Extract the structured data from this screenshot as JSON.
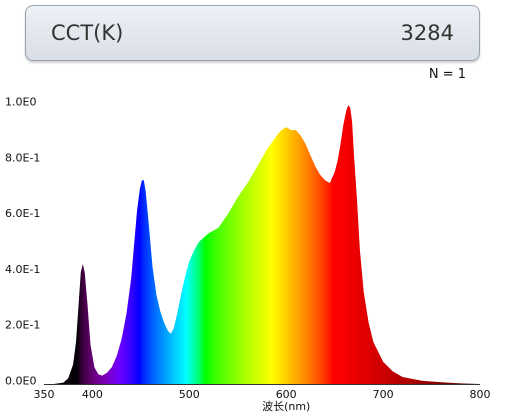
{
  "header": {
    "cct_label": "CCT(K)",
    "cct_value": "3284",
    "n_label": "N = 1"
  },
  "chart_data": {
    "type": "area",
    "title": "",
    "xlabel": "波长(nm)",
    "ylabel": "",
    "xlim": [
      350,
      800
    ],
    "ylim": [
      0,
      1.0
    ],
    "x_ticks": [
      "350",
      "400",
      "500",
      "600",
      "700",
      "800"
    ],
    "y_ticks": [
      "0.0E0",
      "2.0E-1",
      "4.0E-1",
      "6.0E-1",
      "8.0E-1",
      "1.0E0"
    ],
    "fill": "wavelength-color spectrum gradient",
    "x": [
      360,
      370,
      375,
      380,
      383,
      386,
      388,
      390,
      392,
      395,
      398,
      402,
      406,
      410,
      415,
      420,
      425,
      430,
      435,
      440,
      443,
      446,
      449,
      451,
      453,
      455,
      458,
      462,
      466,
      470,
      474,
      478,
      481,
      484,
      488,
      492,
      496,
      500,
      505,
      510,
      520,
      530,
      540,
      550,
      560,
      570,
      580,
      590,
      595,
      600,
      605,
      610,
      615,
      620,
      625,
      630,
      635,
      640,
      645,
      650,
      653,
      656,
      659,
      662,
      664,
      666,
      668,
      670,
      673,
      676,
      680,
      685,
      690,
      700,
      710,
      720,
      740,
      760,
      780,
      800
    ],
    "y": [
      0.0,
      0.005,
      0.02,
      0.07,
      0.15,
      0.3,
      0.4,
      0.43,
      0.4,
      0.28,
      0.14,
      0.06,
      0.035,
      0.03,
      0.04,
      0.06,
      0.1,
      0.16,
      0.25,
      0.38,
      0.5,
      0.62,
      0.7,
      0.73,
      0.73,
      0.69,
      0.58,
      0.42,
      0.32,
      0.26,
      0.22,
      0.19,
      0.18,
      0.2,
      0.26,
      0.33,
      0.39,
      0.44,
      0.48,
      0.51,
      0.54,
      0.56,
      0.61,
      0.67,
      0.72,
      0.78,
      0.84,
      0.89,
      0.91,
      0.92,
      0.91,
      0.91,
      0.89,
      0.86,
      0.82,
      0.78,
      0.75,
      0.73,
      0.72,
      0.76,
      0.8,
      0.86,
      0.93,
      0.98,
      1.0,
      0.99,
      0.94,
      0.82,
      0.66,
      0.48,
      0.33,
      0.22,
      0.15,
      0.08,
      0.045,
      0.025,
      0.012,
      0.006,
      0.002,
      0.0
    ]
  },
  "colors": {
    "axis": "#333333",
    "box_border": "#9aa2ad"
  }
}
